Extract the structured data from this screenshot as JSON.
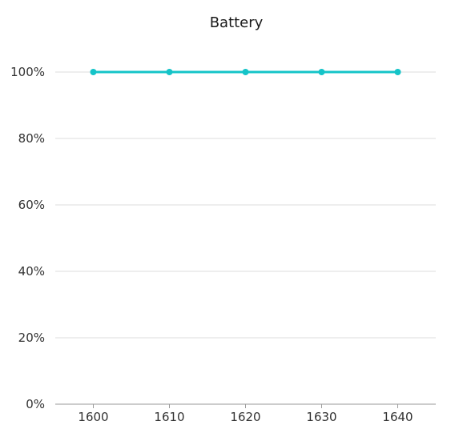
{
  "chart_data": {
    "type": "line",
    "title": "Battery",
    "x": [
      1600,
      1610,
      1620,
      1630,
      1640
    ],
    "xlim": [
      1595,
      1645
    ],
    "x_tick_labels": [
      "1600",
      "1610",
      "1620",
      "1630",
      "1640"
    ],
    "y_tick_values": [
      0,
      20,
      40,
      60,
      80,
      100
    ],
    "y_tick_labels": [
      "0%",
      "20%",
      "40%",
      "60%",
      "80%",
      "100%"
    ],
    "ylim": [
      0,
      100
    ],
    "grid": true,
    "legend": "none",
    "series": [
      {
        "values": [
          100,
          100,
          100,
          100,
          100
        ],
        "color": "#14c4c8"
      }
    ]
  }
}
